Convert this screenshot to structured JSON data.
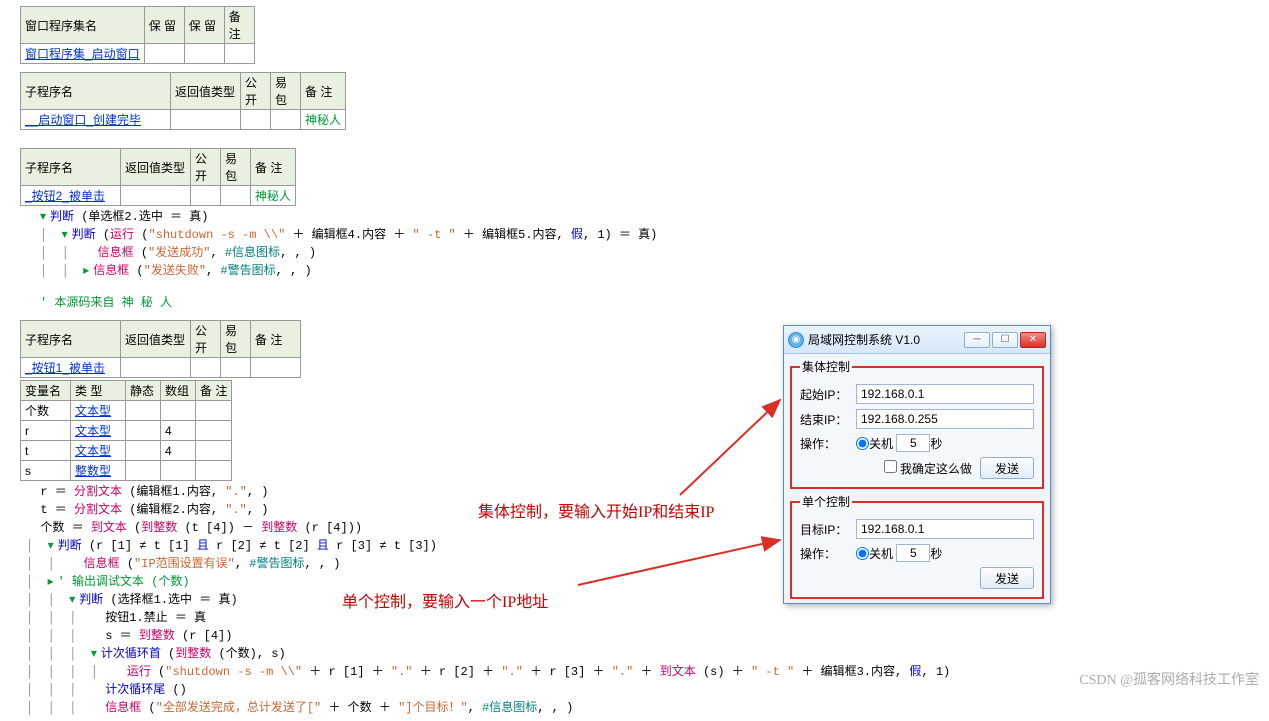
{
  "tables": {
    "t1": {
      "headers": [
        "窗口程序集名",
        "保 留",
        "保 留",
        "备 注"
      ],
      "row": [
        "窗口程序集_启动窗口",
        "",
        "",
        ""
      ]
    },
    "t2": {
      "headers": [
        "子程序名",
        "返回值类型",
        "公开",
        "易包",
        "备 注"
      ],
      "row": [
        "__启动窗口_创建完毕",
        "",
        "",
        "",
        "神秘人"
      ]
    },
    "t3": {
      "headers": [
        "子程序名",
        "返回值类型",
        "公开",
        "易包",
        "备 注"
      ],
      "row": [
        "_按钮2_被单击",
        "",
        "",
        "",
        "神秘人"
      ]
    },
    "t4": {
      "headers": [
        "子程序名",
        "返回值类型",
        "公开",
        "易包",
        "备 注"
      ],
      "row": [
        "_按钮1_被单击",
        "",
        "",
        "",
        ""
      ]
    },
    "vars": {
      "headers": [
        "变量名",
        "类 型",
        "静态",
        "数组",
        "备 注"
      ],
      "rows": [
        [
          "个数",
          "文本型",
          "",
          "",
          ""
        ],
        [
          "r",
          "文本型",
          "",
          "4",
          ""
        ],
        [
          "t",
          "文本型",
          "",
          "4",
          ""
        ],
        [
          "s",
          "整数型",
          "",
          "",
          ""
        ]
      ]
    }
  },
  "code1": [
    {
      "ind": 0,
      "tog": "▾",
      "parts": [
        {
          "t": "判断",
          "c": "kw"
        },
        {
          "t": " (单选框2.选中 ＝ 真)"
        }
      ]
    },
    {
      "ind": 1,
      "tog": "▾",
      "parts": [
        {
          "t": "判断",
          "c": "kw"
        },
        {
          "t": " ("
        },
        {
          "t": "运行",
          "c": "fn"
        },
        {
          "t": " ("
        },
        {
          "t": "\"shutdown -s -m \\\\\"",
          "c": "str"
        },
        {
          "t": " ＋ 编辑框4.内容 ＋ "
        },
        {
          "t": "\" -t \"",
          "c": "str"
        },
        {
          "t": " ＋ 编辑框5.内容, "
        },
        {
          "t": "假",
          "c": "kw"
        },
        {
          "t": ", 1) ＝ 真)"
        }
      ]
    },
    {
      "ind": 2,
      "parts": [
        {
          "t": "信息框",
          "c": "fn"
        },
        {
          "t": " ("
        },
        {
          "t": "\"发送成功\"",
          "c": "str"
        },
        {
          "t": ", "
        },
        {
          "t": "#信息图标",
          "c": "const"
        },
        {
          "t": ", , )"
        }
      ]
    },
    {
      "ind": 2,
      "tog": "▸",
      "parts": [
        {
          "t": "信息框",
          "c": "fn"
        },
        {
          "t": " ("
        },
        {
          "t": "\"发送失败\"",
          "c": "str"
        },
        {
          "t": ", "
        },
        {
          "t": "#警告图标",
          "c": "const"
        },
        {
          "t": ", , )"
        }
      ]
    }
  ],
  "src_comment": "' 本源码来自 神 秘 人",
  "code2": [
    {
      "ind": 0,
      "parts": [
        {
          "t": "r ＝ "
        },
        {
          "t": "分割文本",
          "c": "fn"
        },
        {
          "t": " (编辑框1.内容, "
        },
        {
          "t": "\".\"",
          "c": "str"
        },
        {
          "t": ", )"
        }
      ]
    },
    {
      "ind": 0,
      "parts": [
        {
          "t": "t ＝ "
        },
        {
          "t": "分割文本",
          "c": "fn"
        },
        {
          "t": " (编辑框2.内容, "
        },
        {
          "t": "\".\"",
          "c": "str"
        },
        {
          "t": ", )"
        }
      ]
    },
    {
      "ind": 0,
      "parts": [
        {
          "t": "个数 ＝ "
        },
        {
          "t": "到文本",
          "c": "fn"
        },
        {
          "t": " ("
        },
        {
          "t": "到整数",
          "c": "fn"
        },
        {
          "t": " (t [4]) － "
        },
        {
          "t": "到整数",
          "c": "fn"
        },
        {
          "t": " (r [4]))"
        }
      ]
    },
    {
      "ind": 1,
      "tog": "▾",
      "parts": [
        {
          "t": "判断",
          "c": "kw"
        },
        {
          "t": " (r [1] ≠ t [1] "
        },
        {
          "t": "且",
          "c": "kw"
        },
        {
          "t": " r [2] ≠ t [2] "
        },
        {
          "t": "且",
          "c": "kw"
        },
        {
          "t": " r [3] ≠ t [3])"
        }
      ]
    },
    {
      "ind": 2,
      "parts": [
        {
          "t": "信息框",
          "c": "fn"
        },
        {
          "t": " ("
        },
        {
          "t": "\"IP范围设置有误\"",
          "c": "str"
        },
        {
          "t": ", "
        },
        {
          "t": "#警告图标",
          "c": "const"
        },
        {
          "t": ", , )"
        }
      ]
    },
    {
      "ind": 1,
      "tog": "▸",
      "parts": [
        {
          "t": "' 输出调试文本 (个数)",
          "c": "cmt"
        }
      ]
    },
    {
      "ind": 2,
      "tog": "▾",
      "parts": [
        {
          "t": "判断",
          "c": "kw"
        },
        {
          "t": " (选择框1.选中 ＝ 真)"
        }
      ]
    },
    {
      "ind": 3,
      "parts": [
        {
          "t": "按钮1.禁止 ＝ 真"
        }
      ]
    },
    {
      "ind": 3,
      "parts": [
        {
          "t": "s ＝ "
        },
        {
          "t": "到整数",
          "c": "fn"
        },
        {
          "t": " (r [4])"
        }
      ]
    },
    {
      "ind": 3,
      "tog": "▾",
      "parts": [
        {
          "t": "计次循环首",
          "c": "kw"
        },
        {
          "t": " ("
        },
        {
          "t": "到整数",
          "c": "fn"
        },
        {
          "t": " (个数), s)"
        }
      ]
    },
    {
      "ind": 4,
      "parts": [
        {
          "t": "运行",
          "c": "fn"
        },
        {
          "t": " ("
        },
        {
          "t": "\"shutdown -s -m \\\\\"",
          "c": "str"
        },
        {
          "t": " ＋ r [1] ＋ "
        },
        {
          "t": "\".\"",
          "c": "str"
        },
        {
          "t": " ＋ r [2] ＋ "
        },
        {
          "t": "\".\"",
          "c": "str"
        },
        {
          "t": " ＋ r [3] ＋ "
        },
        {
          "t": "\".\"",
          "c": "str"
        },
        {
          "t": " ＋ "
        },
        {
          "t": "到文本",
          "c": "fn"
        },
        {
          "t": " (s) ＋ "
        },
        {
          "t": "\" -t \"",
          "c": "str"
        },
        {
          "t": " ＋ 编辑框3.内容, "
        },
        {
          "t": "假",
          "c": "kw"
        },
        {
          "t": ", 1)"
        }
      ]
    },
    {
      "ind": 3,
      "parts": [
        {
          "t": "计次循环尾",
          "c": "kw"
        },
        {
          "t": " ()"
        }
      ]
    },
    {
      "ind": 3,
      "parts": [
        {
          "t": "信息框",
          "c": "fn"
        },
        {
          "t": " ("
        },
        {
          "t": "\"全部发送完成，总计发送了[\"",
          "c": "str"
        },
        {
          "t": " ＋ 个数 ＋ "
        },
        {
          "t": "\"]个目标！\"",
          "c": "str"
        },
        {
          "t": ", "
        },
        {
          "t": "#信息图标",
          "c": "const"
        },
        {
          "t": ", , )"
        }
      ]
    }
  ],
  "dialog": {
    "title": "局域网控制系统 V1.0",
    "group1": {
      "legend": "集体控制",
      "start_label": "起始IP：",
      "start_ip": "192.168.0.1",
      "end_label": "结束IP：",
      "end_ip": "192.168.0.255",
      "op_label": "操作：",
      "radio": "关机",
      "seconds": "5",
      "sec_suffix": "秒",
      "confirm": "我确定这么做",
      "send": "发送"
    },
    "group2": {
      "legend": "单个控制",
      "target_label": "目标IP：",
      "target_ip": "192.168.0.1",
      "op_label": "操作：",
      "radio": "关机",
      "seconds": "5",
      "sec_suffix": "秒",
      "send": "发送"
    }
  },
  "annotations": {
    "a1": "集体控制，要输入开始IP和结束IP",
    "a2": "单个控制，要输入一个IP地址"
  },
  "watermark": "CSDN @孤客网络科技工作室"
}
